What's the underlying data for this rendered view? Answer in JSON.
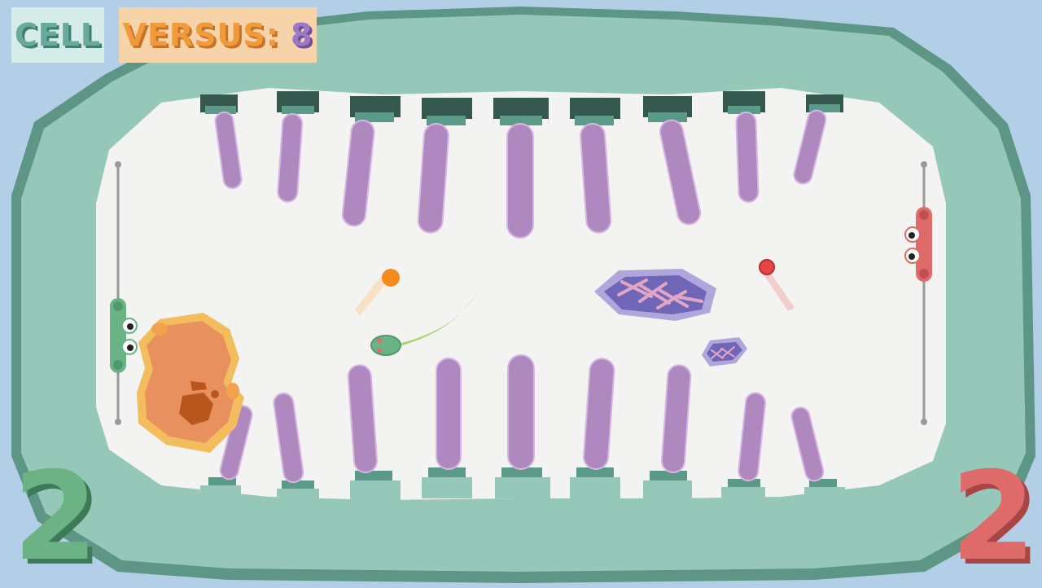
{
  "hud": {
    "mode_label": "CELL",
    "versus_label": "VERSUS:",
    "versus_value": "8"
  },
  "scores": {
    "left": "2",
    "right": "2"
  },
  "colors": {
    "background": "#b3cfe8",
    "cell_wall": "#96c8b9",
    "cell_wall_dark": "#5d9685",
    "cytoplasm": "#f3f3f1",
    "cilia": "#b088c0",
    "left_player": "#6bb384",
    "right_player": "#de6a6a",
    "orange_ball": "#f58a1f",
    "red_ball": "#e84545"
  },
  "players": {
    "left": {
      "name": "green-paddle",
      "color": "#6bb384"
    },
    "right": {
      "name": "red-paddle",
      "color": "#de6a6a"
    }
  },
  "objects": {
    "balls": [
      "orange-ball",
      "red-ball"
    ],
    "creature": "green-tadpole",
    "hazards": [
      "orange-blob",
      "large-chromosome-organelle",
      "small-chromosome-organelle"
    ]
  }
}
